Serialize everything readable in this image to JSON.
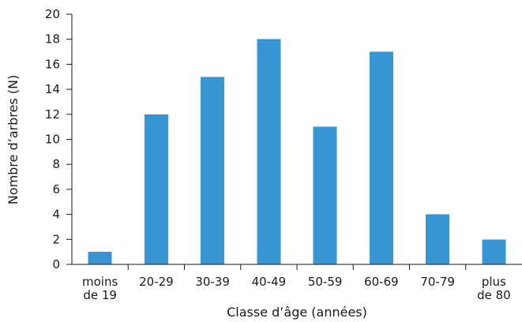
{
  "chart_data": {
    "type": "bar",
    "categories": [
      [
        "moins",
        "de 19"
      ],
      [
        "20-29"
      ],
      [
        "30-39"
      ],
      [
        "40-49"
      ],
      [
        "50-59"
      ],
      [
        "60-69"
      ],
      [
        "70-79"
      ],
      [
        "plus",
        "de 80"
      ]
    ],
    "values": [
      1,
      12,
      15,
      18,
      11,
      17,
      4,
      2
    ],
    "xlabel": "Classe d’âge (années)",
    "ylabel": "Nombre d’arbres (N)",
    "ylim": [
      0,
      20
    ],
    "yticks": [
      0,
      2,
      4,
      6,
      8,
      10,
      12,
      14,
      16,
      18,
      20
    ],
    "bar_color": "#3895d3",
    "grid": false,
    "legend": "none"
  }
}
